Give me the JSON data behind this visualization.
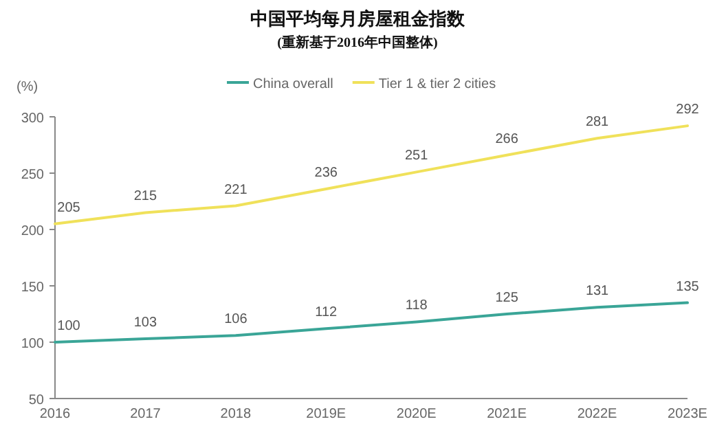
{
  "chart_data": {
    "type": "line",
    "title": "中国平均每月房屋租金指数",
    "subtitle": "(重新基于2016年中国整体)",
    "ylabel": "(%)",
    "categories": [
      "2016",
      "2017",
      "2018",
      "2019E",
      "2020E",
      "2021E",
      "2022E",
      "2023E"
    ],
    "series": [
      {
        "name": "China overall",
        "color": "#3aa597",
        "values": [
          100,
          103,
          106,
          112,
          118,
          125,
          131,
          135
        ]
      },
      {
        "name": "Tier 1 & tier 2 cities",
        "color": "#f0e15a",
        "values": [
          205,
          215,
          221,
          236,
          251,
          266,
          281,
          292
        ]
      }
    ],
    "ylim": [
      50,
      300
    ],
    "yticks": [
      50,
      100,
      150,
      200,
      250,
      300
    ],
    "data_labels": true,
    "legend": "top",
    "grid": false,
    "marker": "none",
    "line_style": "solid"
  }
}
